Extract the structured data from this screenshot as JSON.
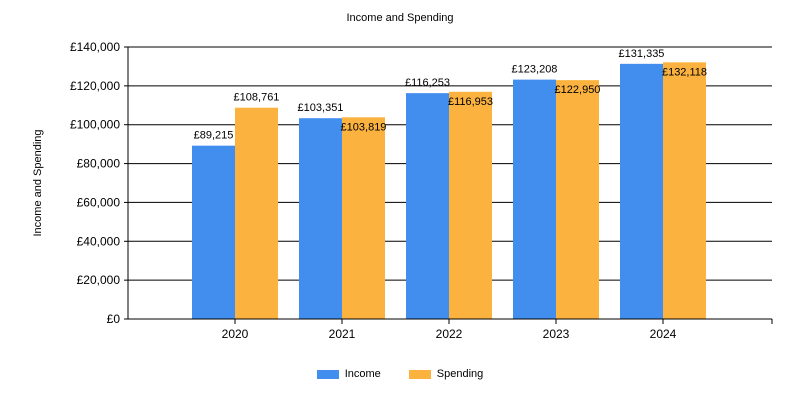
{
  "chart_data": {
    "type": "bar",
    "title": "Income and Spending",
    "xlabel": "",
    "ylabel": "Income and Spending",
    "categories": [
      "2020",
      "2021",
      "2022",
      "2023",
      "2024"
    ],
    "series": [
      {
        "name": "Income",
        "color": "#428EEF",
        "values": [
          89215,
          103351,
          116253,
          123208,
          131335
        ],
        "labels": [
          "£89,215",
          "£103,351",
          "£116,253",
          "£123,208",
          "£131,335"
        ]
      },
      {
        "name": "Spending",
        "color": "#FBB23F",
        "values": [
          108761,
          103819,
          116953,
          122950,
          132118
        ],
        "labels": [
          "£108,761",
          "£103,819",
          "£116,953",
          "£122,950",
          "£132,118"
        ]
      }
    ],
    "ylim": [
      0,
      140000
    ],
    "yticks": [
      0,
      20000,
      40000,
      60000,
      80000,
      100000,
      120000,
      140000
    ],
    "ytick_labels": [
      "£0",
      "£20,000",
      "£40,000",
      "£60,000",
      "£80,000",
      "£100,000",
      "£120,000",
      "£140,000"
    ],
    "grid": true,
    "legend_position": "bottom"
  }
}
